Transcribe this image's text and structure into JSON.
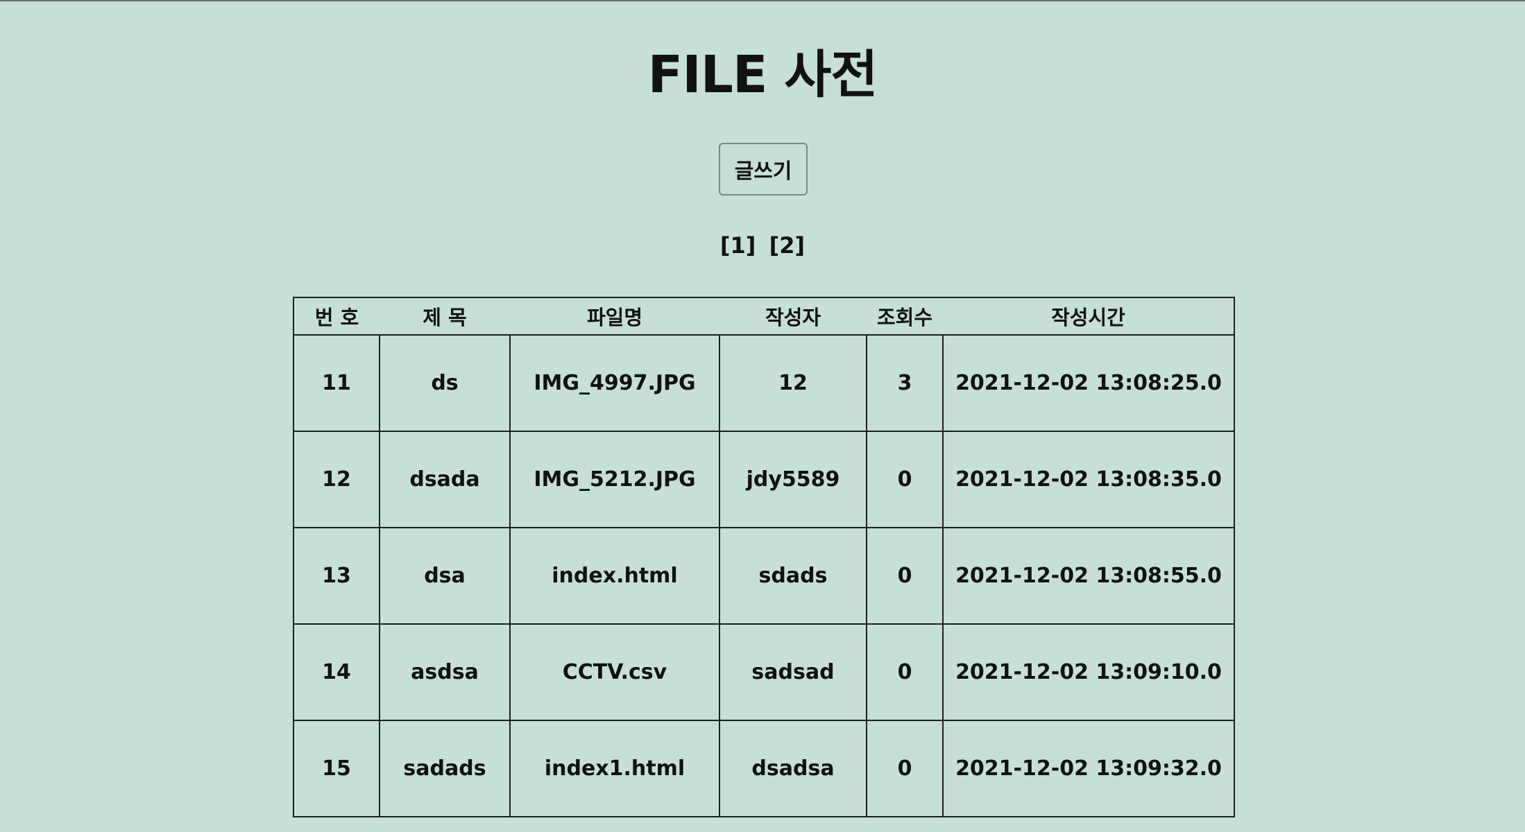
{
  "page": {
    "title": "FILE 사전",
    "write_button_label": "글쓰기"
  },
  "pagination": {
    "pages": [
      "[1]",
      "[2]"
    ]
  },
  "table": {
    "headers": [
      "번 호",
      "제 목",
      "파일명",
      "작성자",
      "조회수",
      "작성시간"
    ],
    "rows": [
      [
        "11",
        "ds",
        "IMG_4997.JPG",
        "12",
        "3",
        "2021-12-02 13:08:25.0"
      ],
      [
        "12",
        "dsada",
        "IMG_5212.JPG",
        "jdy5589",
        "0",
        "2021-12-02 13:08:35.0"
      ],
      [
        "13",
        "dsa",
        "index.html",
        "sdads",
        "0",
        "2021-12-02 13:08:55.0"
      ],
      [
        "14",
        "asdsa",
        "CCTV.csv",
        "sadsad",
        "0",
        "2021-12-02 13:09:10.0"
      ],
      [
        "15",
        "sadads",
        "index1.html",
        "dsadsa",
        "0",
        "2021-12-02 13:09:32.0"
      ]
    ]
  }
}
